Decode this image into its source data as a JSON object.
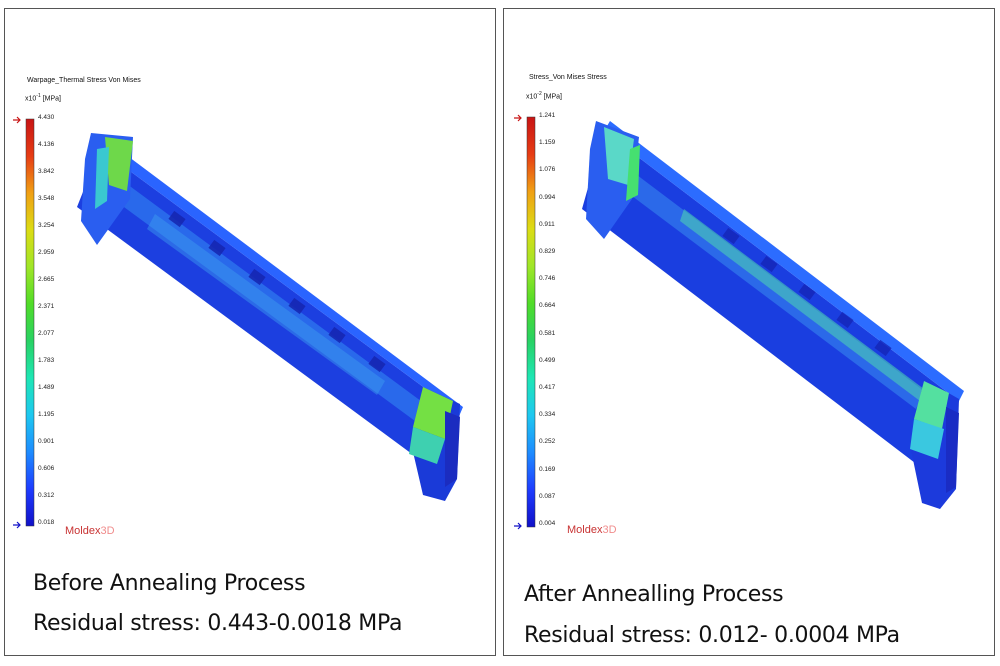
{
  "colors": {
    "colorbar": [
      "#1010c8",
      "#1e3cff",
      "#1e8cff",
      "#1ec8f0",
      "#1ee6b4",
      "#28d264",
      "#50dc28",
      "#a0e628",
      "#dcdc14",
      "#f0a014",
      "#e63c14",
      "#c81414"
    ],
    "brand": "#c83232",
    "part_base": "#1a3ee6"
  },
  "panels": [
    {
      "id": "before",
      "legend_title": "Warpage_Thermal Stress Von Mises",
      "unit_base": "x10",
      "unit_exp": "-1",
      "unit": "[MPa]",
      "ticks": [
        "4.430",
        "4.136",
        "3.842",
        "3.548",
        "3.254",
        "2.959",
        "2.665",
        "2.371",
        "2.077",
        "1.783",
        "1.489",
        "1.195",
        "0.901",
        "0.606",
        "0.312",
        "0.018"
      ],
      "brand": "Moldex",
      "brand_version": "3D",
      "caption_line1": "Before Annealing Process",
      "caption_line2": "Residual stress: 0.443-0.0018 MPa"
    },
    {
      "id": "after",
      "legend_title": "Stress_Von Mises Stress",
      "unit_base": "x10",
      "unit_exp": "-2",
      "unit": "[MPa]",
      "ticks": [
        "1.241",
        "1.159",
        "1.076",
        "0.994",
        "0.911",
        "0.829",
        "0.746",
        "0.664",
        "0.581",
        "0.499",
        "0.417",
        "0.334",
        "0.252",
        "0.169",
        "0.087",
        "0.004"
      ],
      "brand": "Moldex",
      "brand_version": "3D",
      "caption_line1": "After Annealling Process",
      "caption_line2": "Residual stress: 0.012- 0.0004 MPa"
    }
  ]
}
